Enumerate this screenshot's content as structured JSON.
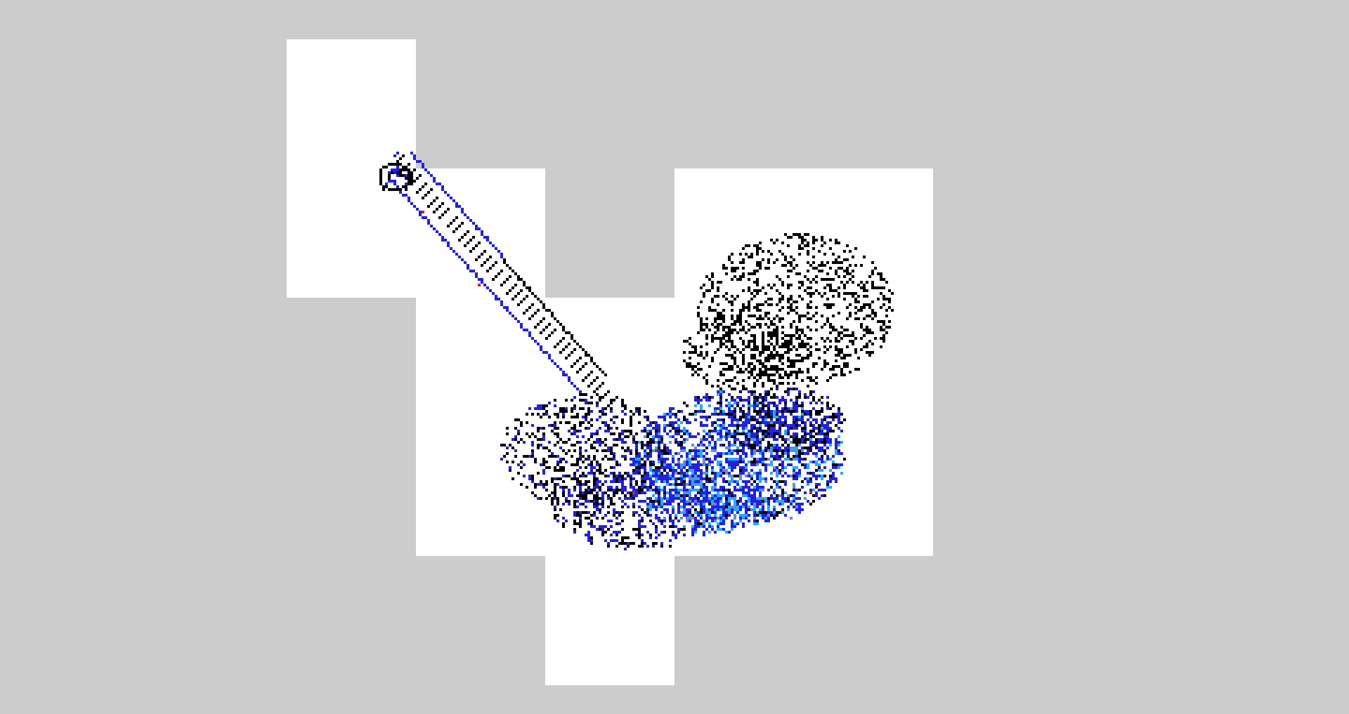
{
  "background_color": "#cccccc",
  "tile_color": "#ffffff",
  "ink_colors": {
    "outline": "#000000",
    "highlight": "#2222dd",
    "bright_highlight": "#22aaff",
    "accent": "#cc2222"
  },
  "tiles": [
    {
      "name": "tile-top-left"
    },
    {
      "name": "tile-mid-1"
    },
    {
      "name": "tile-mid-2"
    },
    {
      "name": "tile-right"
    },
    {
      "name": "tile-bottom"
    }
  ],
  "drawing": {
    "subject": "pixel-art-structure"
  }
}
